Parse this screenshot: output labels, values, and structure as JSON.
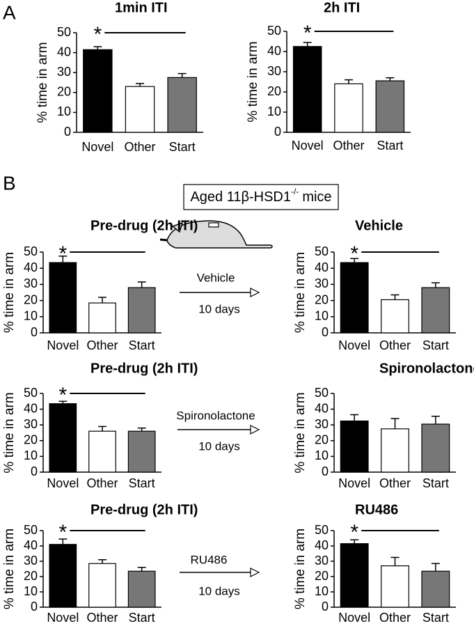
{
  "panel_labels": [
    "A",
    "B"
  ],
  "box_title": {
    "main": "Aged 11β-HSD1",
    "sup": "-/-",
    "rest": "mice"
  },
  "arrows": [
    {
      "label": "Vehicle",
      "sub": "10 days"
    },
    {
      "label": "Spironolactone",
      "sub": "10 days"
    },
    {
      "label": "RU486",
      "sub": "10 days"
    }
  ],
  "chart_data": [
    {
      "type": "bar",
      "title": "1min ITI",
      "y_label": "% time in arm",
      "categories": [
        "Novel",
        "Other",
        "Start"
      ],
      "values": [
        41.5,
        23,
        27.5
      ],
      "errors": [
        1.5,
        1.5,
        2
      ],
      "colors": [
        "#000000",
        "#ffffff",
        "#777777"
      ],
      "ylim": [
        0,
        50
      ],
      "yticks": [
        0,
        10,
        20,
        30,
        40,
        50
      ],
      "annotation": "*"
    },
    {
      "type": "bar",
      "title": "2h ITI",
      "y_label": "% time in arm",
      "categories": [
        "Novel",
        "Other",
        "Start"
      ],
      "values": [
        42.5,
        24,
        25.5
      ],
      "errors": [
        2,
        2,
        1.5
      ],
      "colors": [
        "#000000",
        "#ffffff",
        "#777777"
      ],
      "ylim": [
        0,
        50
      ],
      "yticks": [
        0,
        10,
        20,
        30,
        40,
        50
      ],
      "annotation": "*"
    },
    {
      "type": "bar",
      "title": "Pre-drug (2h ITI)",
      "y_label": "% time in arm",
      "categories": [
        "Novel",
        "Other",
        "Start"
      ],
      "values": [
        43.5,
        18.5,
        28
      ],
      "errors": [
        4,
        3.5,
        3.5
      ],
      "colors": [
        "#000000",
        "#ffffff",
        "#777777"
      ],
      "ylim": [
        0,
        50
      ],
      "yticks": [
        0,
        10,
        20,
        30,
        40,
        50
      ],
      "annotation": "*"
    },
    {
      "type": "bar",
      "title": "Vehicle",
      "y_label": "% time in arm",
      "categories": [
        "Novel",
        "Other",
        "Start"
      ],
      "values": [
        43.5,
        20.5,
        28
      ],
      "errors": [
        2.5,
        3,
        3
      ],
      "colors": [
        "#000000",
        "#ffffff",
        "#777777"
      ],
      "ylim": [
        0,
        50
      ],
      "yticks": [
        0,
        10,
        20,
        30,
        40,
        50
      ],
      "annotation": "*"
    },
    {
      "type": "bar",
      "title": "Pre-drug (2h ITI)",
      "y_label": "% time in arm",
      "categories": [
        "Novel",
        "Other",
        "Start"
      ],
      "values": [
        43.5,
        26,
        26
      ],
      "errors": [
        1.5,
        3,
        2
      ],
      "colors": [
        "#000000",
        "#ffffff",
        "#777777"
      ],
      "ylim": [
        0,
        50
      ],
      "yticks": [
        0,
        10,
        20,
        30,
        40,
        50
      ],
      "annotation": "*"
    },
    {
      "type": "bar",
      "title": "Spironolactone",
      "y_label": "% time in arm",
      "categories": [
        "Novel",
        "Other",
        "Start"
      ],
      "values": [
        32.5,
        27.5,
        30.5
      ],
      "errors": [
        4,
        6.5,
        5
      ],
      "colors": [
        "#000000",
        "#ffffff",
        "#777777"
      ],
      "ylim": [
        0,
        50
      ],
      "yticks": [
        0,
        10,
        20,
        30,
        40,
        50
      ]
    },
    {
      "type": "bar",
      "title": "Pre-drug (2h ITI)",
      "y_label": "% time in arm",
      "categories": [
        "Novel",
        "Other",
        "Start"
      ],
      "values": [
        41,
        28.5,
        23.5
      ],
      "errors": [
        3.5,
        2.5,
        2.5
      ],
      "colors": [
        "#000000",
        "#ffffff",
        "#777777"
      ],
      "ylim": [
        0,
        50
      ],
      "yticks": [
        0,
        10,
        20,
        30,
        40,
        50
      ],
      "annotation": "*"
    },
    {
      "type": "bar",
      "title": "RU486",
      "y_label": "% time in arm",
      "categories": [
        "Novel",
        "Other",
        "Start"
      ],
      "values": [
        41.5,
        27,
        23.5
      ],
      "errors": [
        2.5,
        5.5,
        5
      ],
      "colors": [
        "#000000",
        "#ffffff",
        "#777777"
      ],
      "ylim": [
        0,
        50
      ],
      "yticks": [
        0,
        10,
        20,
        30,
        40,
        50
      ],
      "annotation": "*"
    }
  ]
}
